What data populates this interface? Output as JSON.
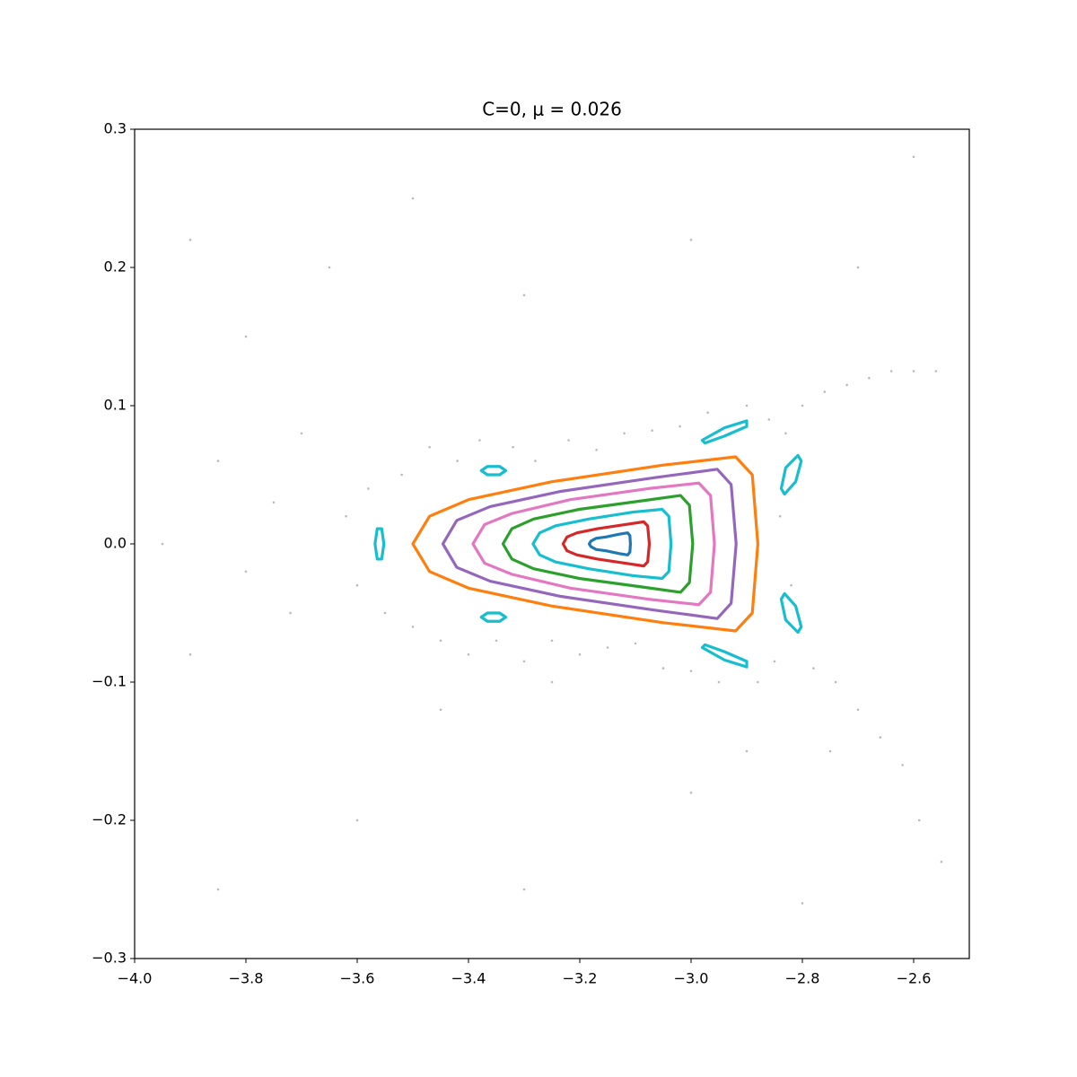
{
  "chart_data": {
    "type": "scatter",
    "title": "C=0, μ = 0.026",
    "xlim": [
      -4.0,
      -2.5
    ],
    "ylim": [
      -0.3,
      0.3
    ],
    "xticks": [
      {
        "value": -4.0,
        "label": "−4.0"
      },
      {
        "value": -3.8,
        "label": "−3.8"
      },
      {
        "value": -3.6,
        "label": "−3.6"
      },
      {
        "value": -3.4,
        "label": "−3.4"
      },
      {
        "value": -3.2,
        "label": "−3.2"
      },
      {
        "value": -3.0,
        "label": "−3.0"
      },
      {
        "value": -2.8,
        "label": "−2.8"
      },
      {
        "value": -2.6,
        "label": "−2.6"
      }
    ],
    "yticks": [
      {
        "value": -0.3,
        "label": "−0.3"
      },
      {
        "value": -0.2,
        "label": "−0.2"
      },
      {
        "value": -0.1,
        "label": "−0.1"
      },
      {
        "value": 0,
        "label": "0.0"
      },
      0.1,
      0.2,
      0.3
    ],
    "series": [
      {
        "type": "scatter",
        "color": "#8c8c8c",
        "x": [
          -3.62,
          -3.6,
          -3.58,
          -3.55,
          -3.52,
          -3.5,
          -3.47,
          -3.45,
          -3.42,
          -3.4,
          -3.38,
          -3.35,
          -3.32,
          -3.3,
          -3.28,
          -3.25,
          -3.22,
          -3.2,
          -3.17,
          -3.15,
          -3.12,
          -3.1,
          -3.07,
          -3.05,
          -3.02,
          -3.0,
          -2.97,
          -2.95,
          -2.9,
          -2.88,
          -2.86,
          -2.85,
          -2.83,
          -2.82,
          -2.84,
          -2.8,
          -2.78,
          -2.76,
          -2.74,
          -2.72,
          -2.7,
          -2.68,
          -2.66,
          -2.64,
          -2.62,
          -2.6,
          -2.59,
          -2.56,
          -2.55,
          -3.7,
          -3.72,
          -3.75,
          -3.8,
          -3.85,
          -3.9,
          -3.65,
          -3.8,
          -3.9,
          -3.5,
          -3.3,
          -3.0,
          -2.7,
          -2.6,
          -3.6,
          -3.3,
          -3.0,
          -2.8,
          -3.85,
          -3.95,
          -3.45,
          -3.25,
          -2.9,
          -2.75
        ],
        "y": [
          0.02,
          -0.03,
          0.04,
          -0.05,
          0.05,
          -0.06,
          0.07,
          -0.07,
          0.06,
          -0.08,
          0.075,
          -0.07,
          0.07,
          -0.085,
          0.06,
          -0.07,
          0.075,
          -0.08,
          0.068,
          -0.075,
          0.08,
          -0.072,
          0.082,
          -0.09,
          0.085,
          -0.092,
          0.095,
          -0.1,
          0.1,
          -0.1,
          0.09,
          -0.085,
          0.08,
          -0.03,
          0.02,
          0.1,
          -0.09,
          0.11,
          -0.1,
          0.115,
          -0.12,
          0.12,
          -0.14,
          0.125,
          -0.16,
          0.125,
          -0.2,
          0.125,
          -0.23,
          0.08,
          -0.05,
          0.03,
          -0.02,
          0.06,
          -0.08,
          0.2,
          0.15,
          0.22,
          0.25,
          0.18,
          0.22,
          0.2,
          0.28,
          -0.2,
          -0.25,
          -0.18,
          -0.26,
          -0.25,
          0.0,
          -0.12,
          -0.1,
          -0.15,
          -0.15
        ]
      },
      {
        "type": "line",
        "color": "#ff7f0e",
        "x": [
          -3.5,
          -3.47,
          -3.4,
          -3.25,
          -3.05,
          -2.92,
          -2.89,
          -2.88,
          -2.89,
          -2.92,
          -3.05,
          -3.25,
          -3.4,
          -3.47
        ],
        "y": [
          0,
          0.02,
          0.032,
          0.045,
          0.057,
          0.063,
          0.05,
          0,
          -0.05,
          -0.063,
          -0.057,
          -0.045,
          -0.032,
          -0.02
        ]
      },
      {
        "type": "line",
        "color": "#9467bd",
        "x": [
          -3.446,
          -3.421,
          -3.361,
          -3.234,
          -3.064,
          -2.953,
          -2.928,
          -2.919,
          -2.928,
          -2.953,
          -3.064,
          -3.234,
          -3.361,
          -3.421
        ],
        "y": [
          0,
          0.017,
          0.027,
          0.038,
          0.048,
          0.054,
          0.043,
          0,
          -0.043,
          -0.054,
          -0.048,
          -0.038,
          -0.027,
          -0.017
        ]
      },
      {
        "type": "line",
        "color": "#e377c2",
        "x": [
          -3.392,
          -3.371,
          -3.322,
          -3.217,
          -3.077,
          -2.986,
          -2.965,
          -2.958,
          -2.965,
          -2.986,
          -3.077,
          -3.217,
          -3.322,
          -3.371
        ],
        "y": [
          0,
          0.014,
          0.022,
          0.032,
          0.04,
          0.044,
          0.035,
          0,
          -0.035,
          -0.044,
          -0.04,
          -0.032,
          -0.022,
          -0.014
        ]
      },
      {
        "type": "line",
        "color": "#2ca02c",
        "x": [
          -3.338,
          -3.322,
          -3.283,
          -3.201,
          -3.091,
          -3.019,
          -3.003,
          -2.997,
          -3.003,
          -3.019,
          -3.091,
          -3.201,
          -3.283,
          -3.322
        ],
        "y": [
          0,
          0.011,
          0.018,
          0.025,
          0.031,
          0.035,
          0.028,
          0,
          -0.028,
          -0.035,
          -0.031,
          -0.025,
          -0.018,
          -0.011
        ]
      },
      {
        "type": "line",
        "color": "#17becf",
        "x": [
          -3.284,
          -3.272,
          -3.244,
          -3.184,
          -3.104,
          -3.052,
          -3.04,
          -3.036,
          -3.04,
          -3.052,
          -3.104,
          -3.184,
          -3.244,
          -3.272
        ],
        "y": [
          0,
          0.008,
          0.013,
          0.018,
          0.023,
          0.025,
          0.02,
          0,
          -0.02,
          -0.025,
          -0.023,
          -0.018,
          -0.013,
          -0.008
        ]
      },
      {
        "type": "line",
        "color": "#d62728",
        "x": [
          -3.23,
          -3.223,
          -3.205,
          -3.168,
          -3.118,
          -3.085,
          -3.078,
          -3.075,
          -3.078,
          -3.085,
          -3.118,
          -3.168,
          -3.205,
          -3.223
        ],
        "y": [
          0,
          0.005,
          0.008,
          0.011,
          0.014,
          0.016,
          0.013,
          0,
          -0.013,
          -0.016,
          -0.014,
          -0.011,
          -0.008,
          -0.005
        ]
      },
      {
        "type": "line",
        "color": "#1f77b4",
        "x": [
          -3.183,
          -3.18,
          -3.171,
          -3.153,
          -3.129,
          -3.114,
          -3.11,
          -3.109,
          -3.11,
          -3.114,
          -3.129,
          -3.153,
          -3.171,
          -3.18
        ],
        "y": [
          0,
          0.002,
          0.004,
          0.005,
          0.007,
          0.008,
          0.006,
          0,
          -0.006,
          -0.008,
          -0.007,
          -0.005,
          -0.004,
          -0.002
        ]
      },
      {
        "type": "line",
        "color": "#17becf",
        "x": [
          -3.552,
          -3.556,
          -3.564,
          -3.568,
          -3.564,
          -3.556,
          null,
          -3.333,
          -3.344,
          -3.366,
          -3.377,
          -3.366,
          -3.344,
          null,
          -3.333,
          -3.344,
          -3.366,
          -3.377,
          -3.366,
          -3.344,
          null,
          -2.98,
          -2.94,
          -2.9,
          -2.9,
          -2.94,
          -2.975,
          null,
          -2.98,
          -2.94,
          -2.9,
          -2.9,
          -2.94,
          -2.975,
          null,
          -2.838,
          -2.83,
          -2.808,
          -2.802,
          -2.812,
          -2.832,
          null,
          -2.838,
          -2.83,
          -2.808,
          -2.802,
          -2.812,
          -2.832
        ],
        "y": [
          0,
          0.011,
          0.011,
          0,
          -0.011,
          -0.011,
          null,
          0.053,
          0.056,
          0.056,
          0.053,
          0.05,
          0.05,
          null,
          -0.053,
          -0.05,
          -0.05,
          -0.053,
          -0.056,
          -0.056,
          null,
          0.075,
          0.084,
          0.089,
          0.085,
          0.078,
          0.073,
          null,
          -0.075,
          -0.084,
          -0.089,
          -0.085,
          -0.078,
          -0.073,
          null,
          0.04,
          0.055,
          0.064,
          0.06,
          0.045,
          0.036,
          null,
          -0.04,
          -0.055,
          -0.064,
          -0.06,
          -0.045,
          -0.036
        ]
      }
    ]
  }
}
